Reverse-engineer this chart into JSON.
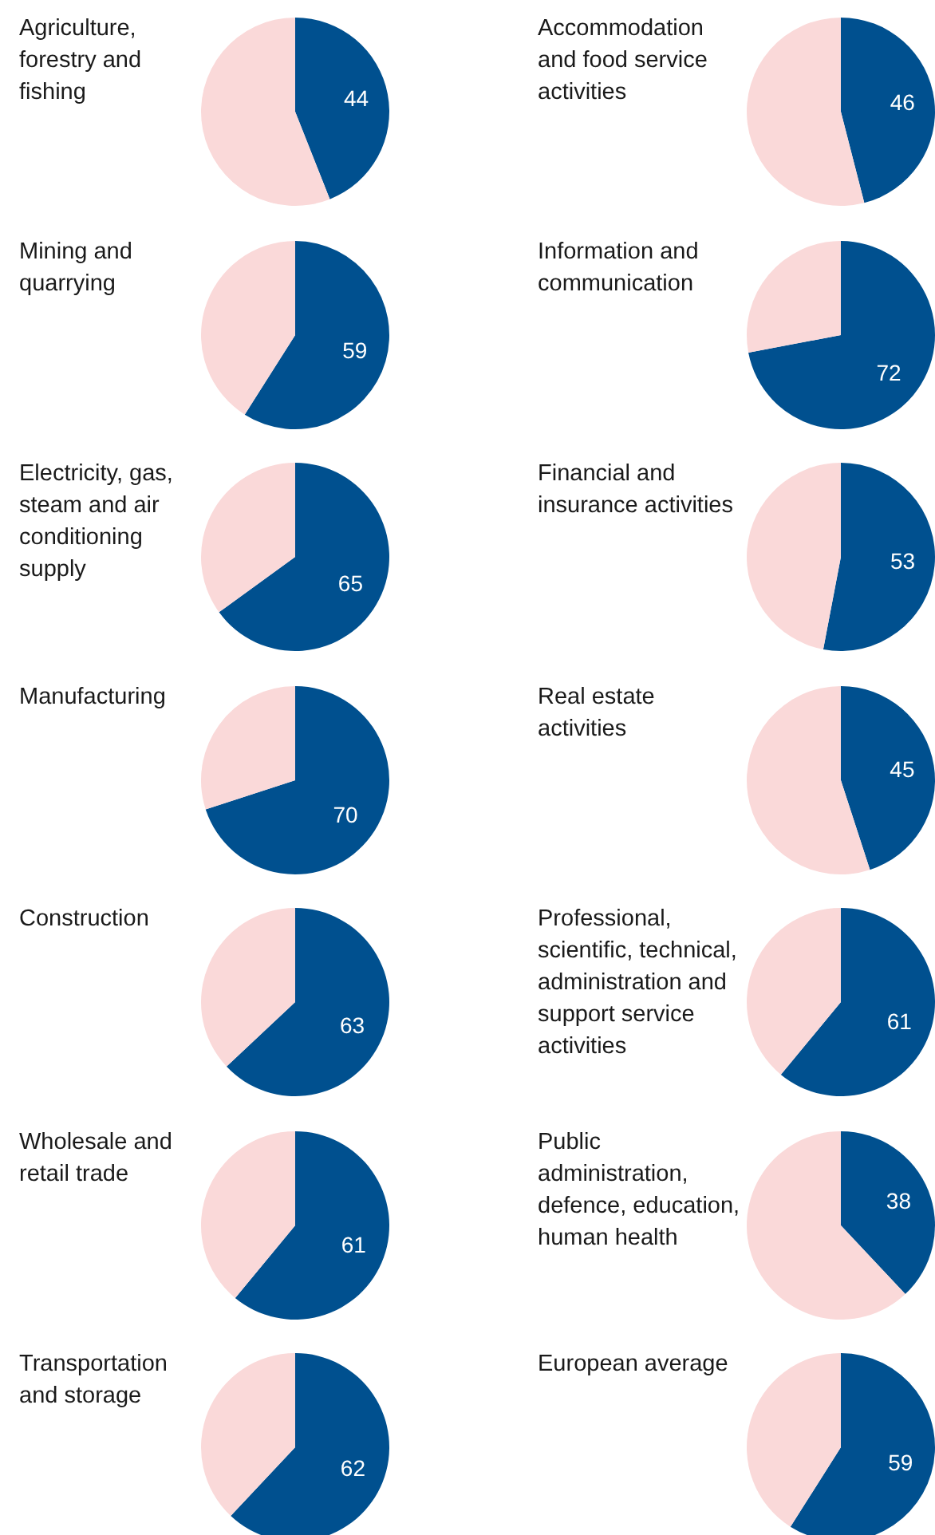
{
  "chart_data": [
    {
      "type": "pie",
      "title": "Agriculture, forestry and fishing",
      "categories": [
        null,
        null
      ],
      "values": [
        44,
        56
      ],
      "colors": [
        "#00508f",
        "#fad9d9"
      ],
      "value_labels": [
        "44",
        null
      ]
    },
    {
      "type": "pie",
      "title": "Accommodation and food service activities",
      "categories": [
        null,
        null
      ],
      "values": [
        46,
        54
      ],
      "colors": [
        "#00508f",
        "#fad9d9"
      ],
      "value_labels": [
        "46",
        null
      ]
    },
    {
      "type": "pie",
      "title": "Mining and quarrying",
      "categories": [
        null,
        null
      ],
      "values": [
        59,
        41
      ],
      "colors": [
        "#00508f",
        "#fad9d9"
      ],
      "value_labels": [
        "59",
        null
      ]
    },
    {
      "type": "pie",
      "title": "Information and communication",
      "categories": [
        null,
        null
      ],
      "values": [
        72,
        28
      ],
      "colors": [
        "#00508f",
        "#fad9d9"
      ],
      "value_labels": [
        "72",
        null
      ]
    },
    {
      "type": "pie",
      "title": "Electricity, gas, steam and air conditioning supply",
      "categories": [
        null,
        null
      ],
      "values": [
        65,
        35
      ],
      "colors": [
        "#00508f",
        "#fad9d9"
      ],
      "value_labels": [
        "65",
        null
      ]
    },
    {
      "type": "pie",
      "title": "Financial and insurance activities",
      "categories": [
        null,
        null
      ],
      "values": [
        53,
        47
      ],
      "colors": [
        "#00508f",
        "#fad9d9"
      ],
      "value_labels": [
        "53",
        null
      ]
    },
    {
      "type": "pie",
      "title": "Manufacturing",
      "categories": [
        null,
        null
      ],
      "values": [
        70,
        30
      ],
      "colors": [
        "#00508f",
        "#fad9d9"
      ],
      "value_labels": [
        "70",
        null
      ]
    },
    {
      "type": "pie",
      "title": "Real estate activities",
      "categories": [
        null,
        null
      ],
      "values": [
        45,
        55
      ],
      "colors": [
        "#00508f",
        "#fad9d9"
      ],
      "value_labels": [
        "45",
        null
      ]
    },
    {
      "type": "pie",
      "title": "Construction",
      "categories": [
        null,
        null
      ],
      "values": [
        63,
        37
      ],
      "colors": [
        "#00508f",
        "#fad9d9"
      ],
      "value_labels": [
        "63",
        null
      ]
    },
    {
      "type": "pie",
      "title": "Professional, scientific, technical, administration and support service activities",
      "categories": [
        null,
        null
      ],
      "values": [
        61,
        39
      ],
      "colors": [
        "#00508f",
        "#fad9d9"
      ],
      "value_labels": [
        "61",
        null
      ]
    },
    {
      "type": "pie",
      "title": "Wholesale and retail trade",
      "categories": [
        null,
        null
      ],
      "values": [
        61,
        39
      ],
      "colors": [
        "#00508f",
        "#fad9d9"
      ],
      "value_labels": [
        "61",
        null
      ]
    },
    {
      "type": "pie",
      "title": "Public administration, defence, education, human health",
      "categories": [
        null,
        null
      ],
      "values": [
        38,
        62
      ],
      "colors": [
        "#00508f",
        "#fad9d9"
      ],
      "value_labels": [
        "38",
        null
      ]
    },
    {
      "type": "pie",
      "title": "Transportation and storage",
      "categories": [
        null,
        null
      ],
      "values": [
        62,
        38
      ],
      "colors": [
        "#00508f",
        "#fad9d9"
      ],
      "value_labels": [
        "62",
        null
      ]
    },
    {
      "type": "pie",
      "title": "European average",
      "categories": [
        null,
        null
      ],
      "values": [
        59,
        41
      ],
      "colors": [
        "#00508f",
        "#fad9d9"
      ],
      "value_labels": [
        "59",
        null
      ]
    }
  ]
}
